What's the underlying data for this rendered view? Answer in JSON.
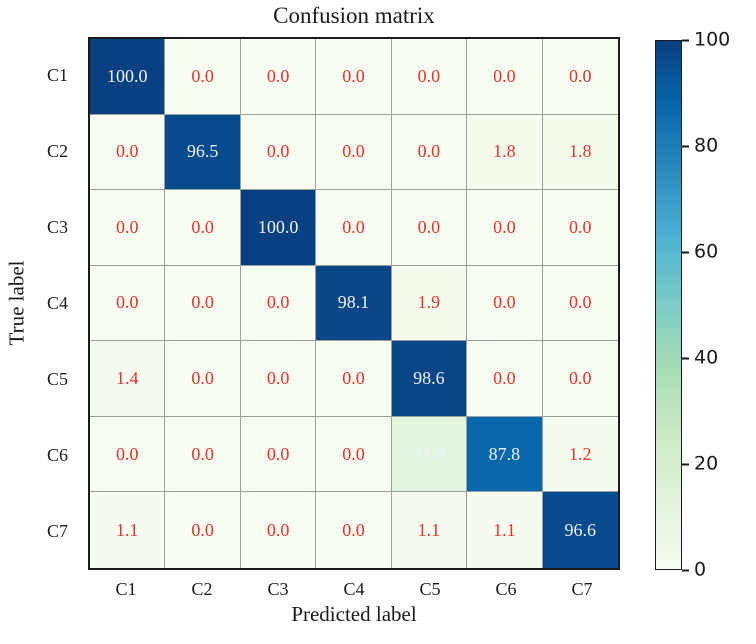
{
  "chart_data": {
    "type": "heatmap",
    "title": "Confusion matrix",
    "xlabel": "Predicted label",
    "ylabel": "True label",
    "x_categories": [
      "C1",
      "C2",
      "C3",
      "C4",
      "C5",
      "C6",
      "C7"
    ],
    "y_categories": [
      "C1",
      "C2",
      "C3",
      "C4",
      "C5",
      "C6",
      "C7"
    ],
    "matrix": [
      [
        100.0,
        0.0,
        0.0,
        0.0,
        0.0,
        0.0,
        0.0
      ],
      [
        0.0,
        96.5,
        0.0,
        0.0,
        0.0,
        1.8,
        1.8
      ],
      [
        0.0,
        0.0,
        100.0,
        0.0,
        0.0,
        0.0,
        0.0
      ],
      [
        0.0,
        0.0,
        0.0,
        98.1,
        1.9,
        0.0,
        0.0
      ],
      [
        1.4,
        0.0,
        0.0,
        0.0,
        98.6,
        0.0,
        0.0
      ],
      [
        0.0,
        0.0,
        0.0,
        0.0,
        11.0,
        87.8,
        1.2
      ],
      [
        1.1,
        0.0,
        0.0,
        0.0,
        1.1,
        1.1,
        96.6
      ]
    ],
    "vmin": 0,
    "vmax": 100,
    "colorbar_ticks": [
      0,
      20,
      40,
      60,
      80,
      100
    ],
    "colormap_name": "GnBu",
    "colormap_stops": [
      "#f7fcf0",
      "#e0f3db",
      "#ccebc5",
      "#a8ddb5",
      "#7bccc4",
      "#4eb3d3",
      "#2b8cbe",
      "#0868ac",
      "#084081"
    ],
    "cell_text_color_low": "#e5332e",
    "cell_text_color_high": "#eef2f7",
    "high_text_min_value": 10,
    "grid_line_color": "#9aa0a0",
    "axis_color": "#1a1a1a",
    "legend_position": "right-colorbar",
    "grid": "on"
  }
}
